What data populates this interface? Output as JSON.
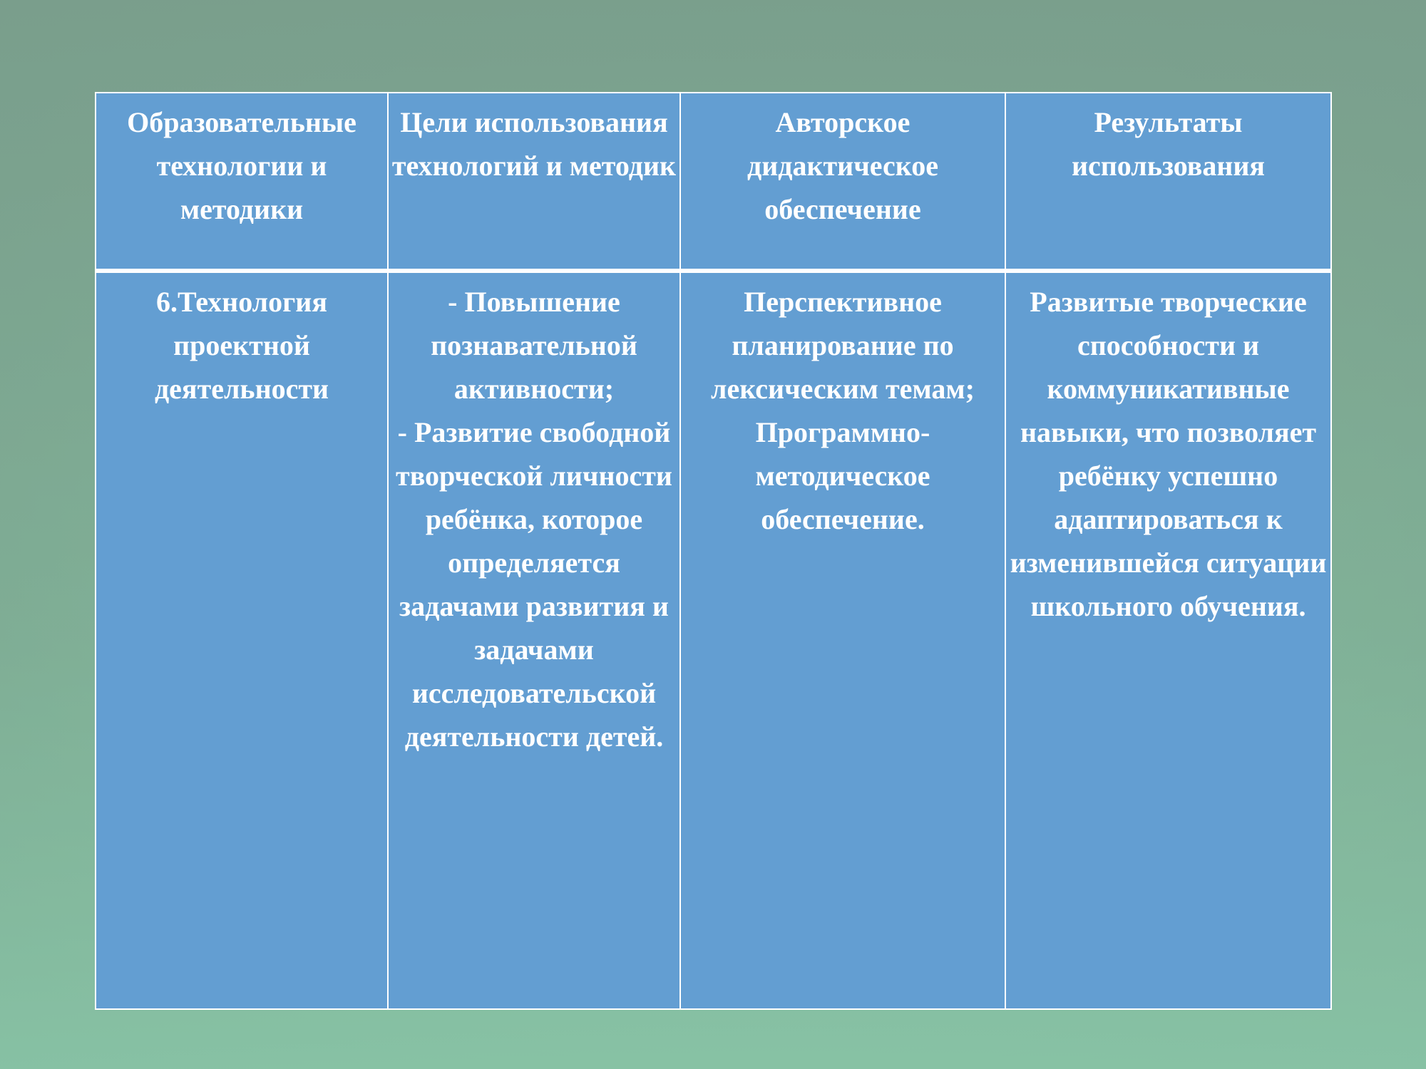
{
  "table": {
    "headers": [
      "Образовательные технологии и методики",
      "Цели использования технологий и методик",
      "Авторское дидактическое обеспечение",
      "Результаты использования"
    ],
    "row": [
      "6.Технология проектной деятельности",
      "- Повышение познавательной активности;\n- Развитие свободной творческой личности ребёнка, которое определяется задачами развития и задачами исследовательской деятельности детей.",
      "Перспективное планирование по лексическим темам;\nПрограммно-методическое обеспечение.",
      "Развитые творческие способности и коммуникативные навыки, что позволяет ребёнку успешно адаптироваться к изменившейся ситуации школьного обучения."
    ]
  },
  "colors": {
    "cell": "#639ed2",
    "border": "#ffffff",
    "background": "#7ea48e"
  }
}
